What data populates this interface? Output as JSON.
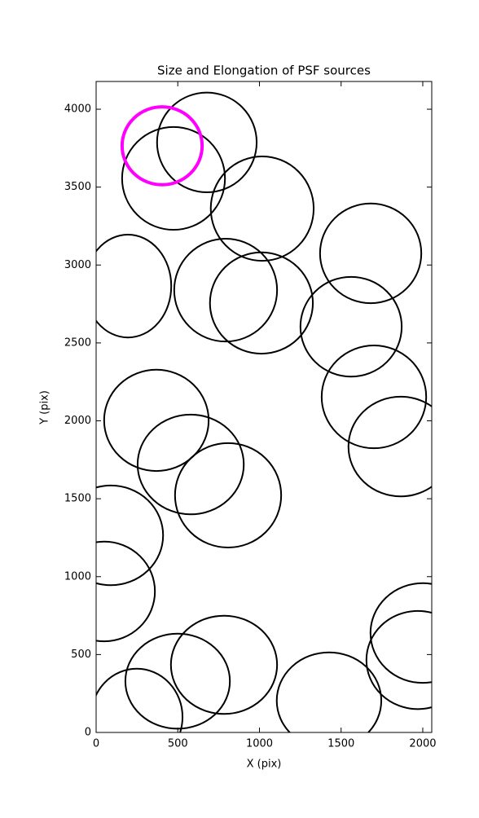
{
  "chart_data": {
    "type": "ellipse",
    "title": "Size and Elongation of PSF sources",
    "xlabel": "X (pix)",
    "ylabel": "Y (pix)",
    "xlim": [
      0,
      2055
    ],
    "ylim": [
      0,
      4178
    ],
    "xticks": [
      0,
      500,
      1000,
      1500,
      2000
    ],
    "yticks": [
      0,
      500,
      1000,
      1500,
      2000,
      2500,
      3000,
      3500,
      4000
    ],
    "series": [
      {
        "color": "#000000",
        "x": [
          678,
          474,
          1017,
          1681,
          195,
          793,
          1012,
          1561,
          1701,
          1865,
          369,
          579,
          808,
          90,
          50,
          249,
          499,
          783,
          1426,
          2000,
          1970
        ],
        "y": [
          3787,
          3556,
          3362,
          3075,
          2865,
          2839,
          2756,
          2604,
          2154,
          1835,
          2003,
          1720,
          1522,
          1265,
          905,
          99,
          329,
          434,
          204,
          638,
          465
        ],
        "width": [
          610,
          630,
          630,
          620,
          530,
          630,
          630,
          620,
          640,
          640,
          640,
          650,
          650,
          640,
          620,
          560,
          640,
          650,
          640,
          640,
          630
        ],
        "height": [
          640,
          660,
          670,
          640,
          660,
          660,
          650,
          640,
          660,
          640,
          650,
          640,
          670,
          640,
          640,
          620,
          610,
          630,
          620,
          640,
          630
        ]
      },
      {
        "color": "#ff00ff",
        "x": [
          404
        ],
        "y": [
          3765
        ],
        "width": [
          490
        ],
        "height": [
          500
        ]
      }
    ]
  }
}
